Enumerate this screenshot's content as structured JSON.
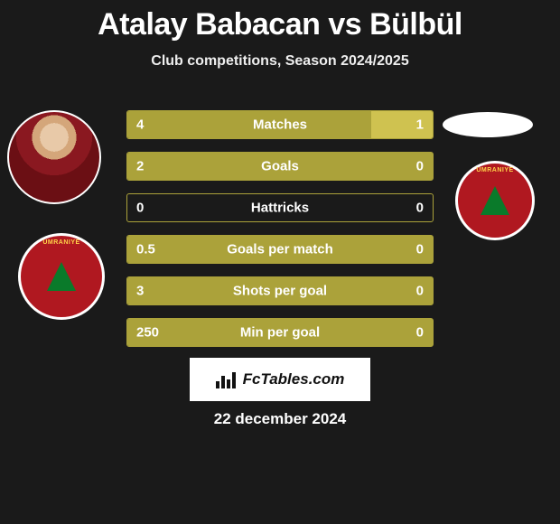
{
  "title": "Atalay Babacan vs Bülbül",
  "subtitle": "Club competitions, Season 2024/2025",
  "watermark_text": "FcTables.com",
  "date": "22 december 2024",
  "colors": {
    "bar_left": "#aba23a",
    "bar_right": "#cfc250",
    "border": "#aba23a",
    "background": "#1a1a1a",
    "text": "#ffffff",
    "club_badge": "#b01820",
    "tree": "#0a7a2a",
    "club_text": "#ffd24a"
  },
  "chart": {
    "type": "comparison-bars",
    "rows": [
      {
        "label": "Matches",
        "left": "4",
        "right": "1",
        "left_pct": 80,
        "right_pct": 20
      },
      {
        "label": "Goals",
        "left": "2",
        "right": "0",
        "left_pct": 100,
        "right_pct": 0
      },
      {
        "label": "Hattricks",
        "left": "0",
        "right": "0",
        "left_pct": 0,
        "right_pct": 0
      },
      {
        "label": "Goals per match",
        "left": "0.5",
        "right": "0",
        "left_pct": 100,
        "right_pct": 0
      },
      {
        "label": "Shots per goal",
        "left": "3",
        "right": "0",
        "left_pct": 100,
        "right_pct": 0
      },
      {
        "label": "Min per goal",
        "left": "250",
        "right": "0",
        "left_pct": 100,
        "right_pct": 0
      }
    ]
  },
  "players": {
    "left": {
      "name": "Atalay Babacan",
      "club": "Ümraniye"
    },
    "right": {
      "name": "Bülbül",
      "club": "Ümraniye"
    }
  }
}
